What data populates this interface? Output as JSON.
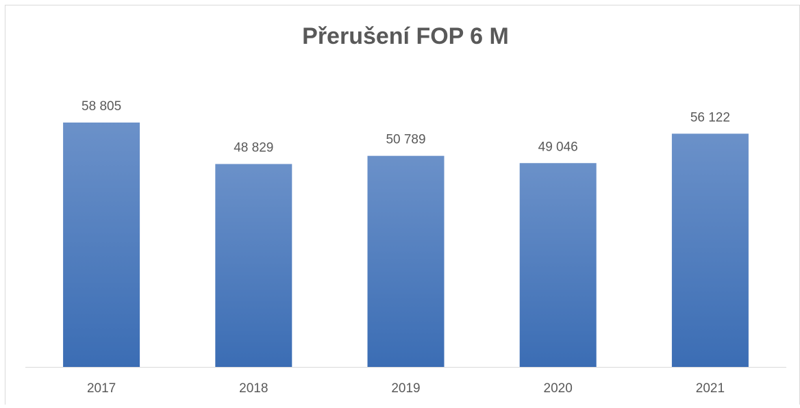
{
  "chart_data": {
    "type": "bar",
    "title": "Přerušení FOP 6 M",
    "categories": [
      "2017",
      "2018",
      "2019",
      "2020",
      "2021"
    ],
    "values": [
      58805,
      48829,
      50789,
      49046,
      56122
    ],
    "value_labels": [
      "58 805",
      "48 829",
      "50 789",
      "49 046",
      "56 122"
    ],
    "color": "#4a7cc0"
  }
}
